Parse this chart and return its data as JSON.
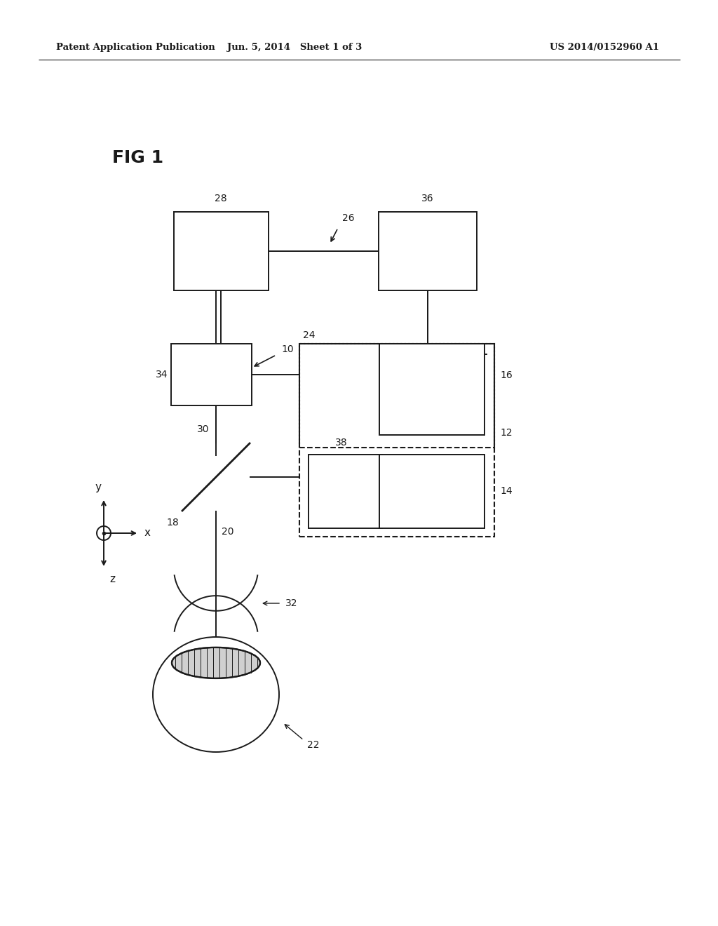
{
  "header_left": "Patent Application Publication",
  "header_mid": "Jun. 5, 2014   Sheet 1 of 3",
  "header_right": "US 2014/0152960 A1",
  "fig_label": "FIG 1",
  "bg_color": "#ffffff",
  "line_color": "#1a1a1a"
}
